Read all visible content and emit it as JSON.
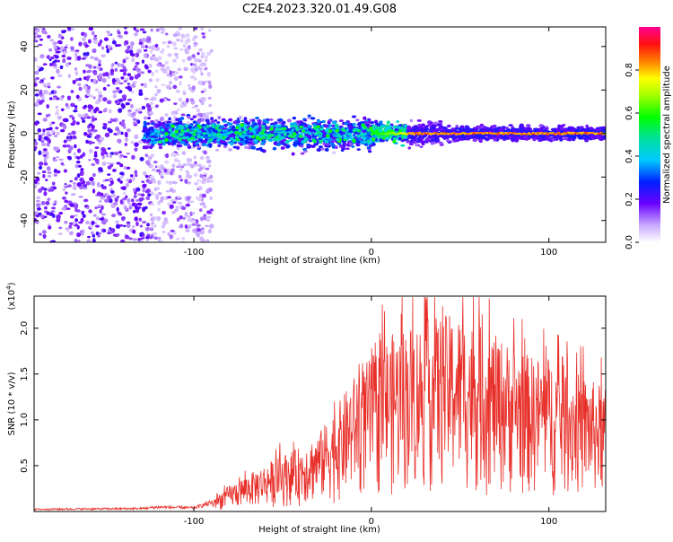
{
  "title": "C2E4.2023.320.01.49.G08",
  "chart_data": [
    {
      "type": "heatmap",
      "xlabel": "Height of straight line (km)",
      "ylabel": "Frequency (Hz)",
      "xlim": [
        -190,
        132
      ],
      "ylim": [
        -50,
        49
      ],
      "xticks": [
        "-100",
        "0",
        "100"
      ],
      "xtick_values": [
        -100,
        0,
        100
      ],
      "yticks": [
        "40",
        "20",
        "0",
        "-20",
        "-40"
      ],
      "ytick_values": [
        40,
        20,
        0,
        -20,
        -40
      ],
      "colorbar": {
        "label": "Normalized spectral amplitude",
        "ticks": [
          "0.0",
          "0.2",
          "0.4",
          "0.6",
          "0.8"
        ],
        "tick_values": [
          0.0,
          0.2,
          0.4,
          0.6,
          0.8
        ],
        "range": [
          0,
          1
        ]
      },
      "features": [
        {
          "name": "strong line near 0 Hz",
          "x_range": [
            -125,
            132
          ],
          "freq": 0,
          "amplitude": "0.2 rising to 0.9 above 20 km"
        },
        {
          "name": "diffuse noise band",
          "x_range": [
            -190,
            -90
          ],
          "freq_range": [
            -50,
            49
          ],
          "amplitude": "0.0-0.2"
        }
      ]
    },
    {
      "type": "line",
      "xlabel": "Height of straight line (km)",
      "ylabel": "SNR (10 * v/v)",
      "yscale_label": "(x10",
      "yscale_exponent": "4",
      "xlim": [
        -190,
        132
      ],
      "ylim": [
        0,
        2.35
      ],
      "xticks": [
        "-100",
        "0",
        "100"
      ],
      "xtick_values": [
        -100,
        0,
        100
      ],
      "yticks": [
        "0.5",
        "1.0",
        "1.5",
        "2.0"
      ],
      "ytick_values": [
        0.5,
        1.0,
        1.5,
        2.0
      ],
      "line_color": "#e8302a",
      "envelope": {
        "x": [
          -190,
          -130,
          -120,
          -100,
          -90,
          -80,
          -70,
          -60,
          -50,
          -40,
          -30,
          -20,
          -10,
          0,
          10,
          20,
          30,
          40,
          50,
          60,
          70,
          80,
          90,
          100,
          110,
          120,
          132
        ],
        "y": [
          0.03,
          0.04,
          0.06,
          0.05,
          0.12,
          0.25,
          0.35,
          0.45,
          0.55,
          0.62,
          0.75,
          1.0,
          1.3,
          1.5,
          1.7,
          1.8,
          1.85,
          1.9,
          1.9,
          1.8,
          1.7,
          1.6,
          1.5,
          1.5,
          1.4,
          1.3,
          1.2
        ]
      }
    }
  ]
}
